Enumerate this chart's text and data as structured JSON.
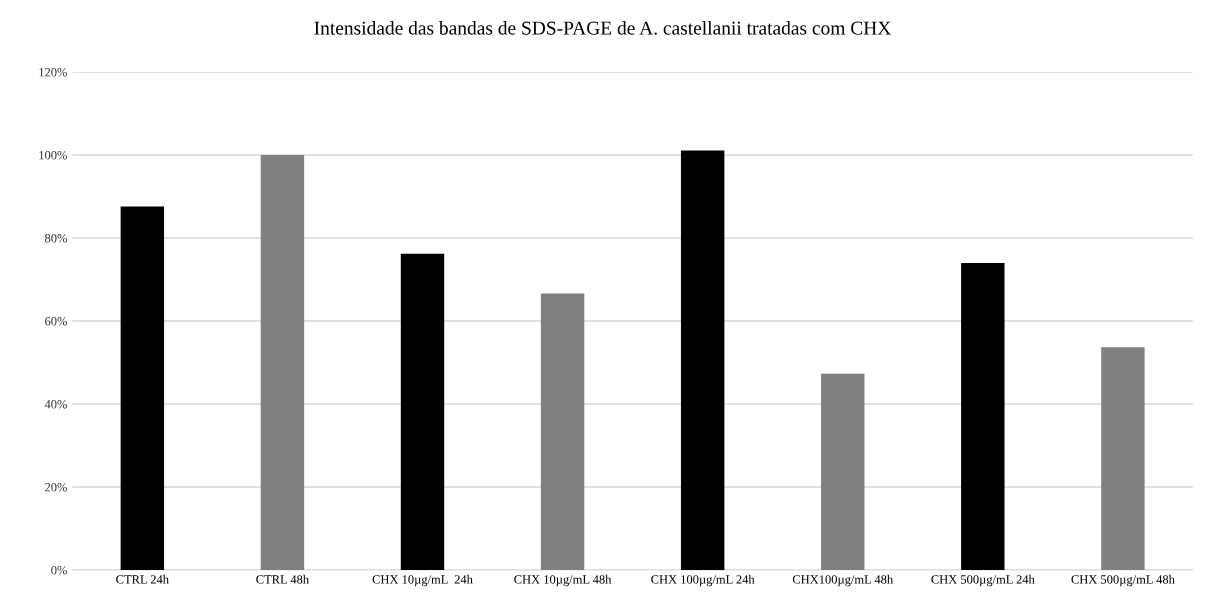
{
  "chart_data": {
    "type": "bar",
    "title": "Intensidade das bandas de SDS-PAGE de A. castellanii tratadas com CHX",
    "categories": [
      "CTRL 24h",
      "CTRL 48h",
      "CHX 10µg/mL  24h",
      "CHX 10µg/mL 48h",
      "CHX 100µg/mL 24h",
      "CHX100µg/mL 48h",
      "CHX 500µg/mL 24h",
      "CHX 500µg/mL 48h"
    ],
    "values": [
      87.6,
      100,
      76.2,
      66.6,
      101.1,
      47.3,
      74.0,
      53.7
    ],
    "colors": [
      "#000000",
      "#808080",
      "#000000",
      "#808080",
      "#000000",
      "#808080",
      "#000000",
      "#808080"
    ],
    "ylim": [
      0,
      120
    ],
    "yticks": [
      {
        "value": 0,
        "label": "0%"
      },
      {
        "value": 20,
        "label": "20%"
      },
      {
        "value": 40,
        "label": "40%"
      },
      {
        "value": 60,
        "label": "60%"
      },
      {
        "value": 80,
        "label": "80%"
      },
      {
        "value": 100,
        "label": "100%"
      },
      {
        "value": 120,
        "label": "120%"
      }
    ],
    "grid": "y"
  }
}
